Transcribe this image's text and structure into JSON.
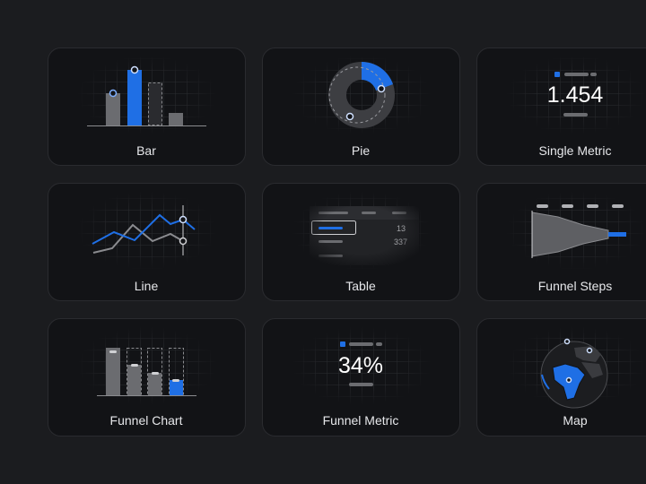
{
  "cards": [
    {
      "label": "Bar"
    },
    {
      "label": "Pie"
    },
    {
      "label": "Single Metric",
      "value": "1.454"
    },
    {
      "label": "Line"
    },
    {
      "label": "Table",
      "values": [
        "13",
        "337"
      ]
    },
    {
      "label": "Funnel Steps"
    },
    {
      "label": "Funnel Chart"
    },
    {
      "label": "Funnel Metric",
      "value": "34%"
    },
    {
      "label": "Map"
    }
  ]
}
